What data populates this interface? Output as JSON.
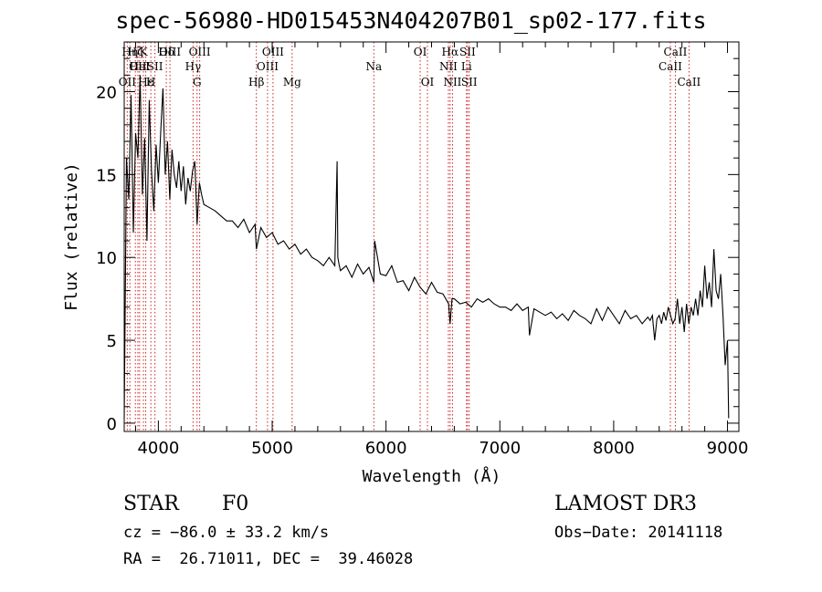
{
  "chart_data": {
    "type": "line",
    "title": "spec-56980-HD015453N404207B01_sp02-177.fits",
    "xlabel": "Wavelength (Å)",
    "ylabel": "Flux (relative)",
    "xlim": [
      3700,
      9100
    ],
    "ylim": [
      -0.5,
      23.0
    ],
    "x_ticks": [
      4000,
      5000,
      6000,
      7000,
      8000,
      9000
    ],
    "y_ticks": [
      0,
      5,
      10,
      15,
      20
    ],
    "series": [
      {
        "name": "spectrum",
        "x": [
          3700,
          3720,
          3740,
          3760,
          3780,
          3800,
          3820,
          3840,
          3860,
          3880,
          3900,
          3920,
          3940,
          3960,
          3980,
          4000,
          4020,
          4040,
          4060,
          4080,
          4100,
          4120,
          4140,
          4160,
          4180,
          4200,
          4220,
          4240,
          4260,
          4280,
          4300,
          4320,
          4340,
          4360,
          4380,
          4400,
          4450,
          4500,
          4550,
          4600,
          4650,
          4700,
          4750,
          4800,
          4850,
          4861,
          4900,
          4950,
          5000,
          5050,
          5100,
          5150,
          5200,
          5250,
          5300,
          5350,
          5400,
          5450,
          5500,
          5550,
          5570,
          5577,
          5590,
          5600,
          5650,
          5700,
          5750,
          5800,
          5850,
          5893,
          5900,
          5950,
          6000,
          6050,
          6100,
          6150,
          6200,
          6250,
          6300,
          6350,
          6400,
          6450,
          6500,
          6550,
          6563,
          6580,
          6600,
          6650,
          6700,
          6750,
          6800,
          6850,
          6900,
          6950,
          7000,
          7050,
          7100,
          7150,
          7200,
          7250,
          7260,
          7300,
          7350,
          7400,
          7450,
          7500,
          7550,
          7600,
          7650,
          7700,
          7750,
          7800,
          7850,
          7900,
          7950,
          8000,
          8050,
          8100,
          8150,
          8200,
          8250,
          8300,
          8320,
          8340,
          8360,
          8380,
          8400,
          8420,
          8440,
          8460,
          8480,
          8500,
          8520,
          8540,
          8560,
          8580,
          8600,
          8620,
          8640,
          8660,
          8680,
          8700,
          8720,
          8740,
          8760,
          8780,
          8800,
          8820,
          8840,
          8860,
          8880,
          8900,
          8920,
          8940,
          8960,
          8980,
          9000,
          9010
        ],
        "y": [
          0.3,
          16.0,
          13.5,
          19.8,
          11.5,
          17.5,
          16.0,
          21.0,
          13.8,
          17.2,
          11.0,
          19.5,
          15.2,
          12.8,
          16.8,
          14.5,
          17.5,
          20.2,
          15.0,
          17.0,
          13.5,
          16.5,
          15.0,
          14.2,
          15.8,
          14.0,
          15.5,
          13.2,
          14.8,
          14.0,
          15.2,
          15.8,
          12.0,
          14.5,
          13.8,
          13.2,
          13.0,
          12.8,
          12.5,
          12.2,
          12.2,
          11.8,
          12.3,
          11.5,
          12.0,
          10.5,
          11.8,
          11.2,
          11.5,
          10.8,
          11.0,
          10.5,
          10.8,
          10.2,
          10.5,
          10.0,
          9.8,
          9.5,
          10.0,
          9.5,
          15.8,
          10.0,
          9.5,
          9.2,
          9.5,
          8.8,
          9.6,
          9.0,
          9.4,
          8.5,
          11.0,
          9.0,
          8.9,
          9.5,
          8.5,
          8.6,
          8.0,
          8.8,
          8.2,
          7.8,
          8.5,
          7.9,
          7.8,
          7.2,
          6.0,
          7.5,
          7.5,
          7.2,
          7.3,
          7.0,
          7.5,
          7.3,
          7.5,
          7.2,
          7.0,
          7.0,
          6.8,
          7.2,
          6.8,
          7.0,
          5.3,
          6.9,
          6.7,
          6.5,
          6.7,
          6.3,
          6.6,
          6.2,
          6.8,
          6.5,
          6.3,
          6.0,
          6.9,
          6.2,
          7.0,
          6.5,
          6.0,
          6.8,
          6.3,
          6.5,
          6.0,
          6.4,
          6.2,
          6.5,
          5.0,
          6.3,
          6.5,
          6.0,
          6.7,
          6.2,
          7.0,
          6.5,
          6.0,
          6.3,
          7.5,
          6.0,
          7.0,
          5.5,
          7.2,
          6.0,
          7.0,
          6.5,
          7.5,
          6.5,
          8.0,
          7.0,
          9.5,
          7.5,
          8.5,
          7.0,
          10.5,
          8.0,
          7.5,
          9.0,
          6.5,
          3.5,
          5.0,
          0.3
        ]
      }
    ],
    "line_markers": [
      {
        "wave": 3727,
        "label": "OII",
        "row": 3
      },
      {
        "wave": 3750,
        "label": "Hη",
        "row": 1
      },
      {
        "wave": 3798,
        "label": "Hζ",
        "row": 1
      },
      {
        "wave": 3820,
        "label": "OII",
        "row": 2
      },
      {
        "wave": 3835,
        "label": "HeI",
        "row": 2
      },
      {
        "wave": 3869,
        "label": "K",
        "row": 1
      },
      {
        "wave": 3889,
        "label": "Hε",
        "row": 3
      },
      {
        "wave": 3934,
        "label": "H",
        "row": 3
      },
      {
        "wave": 3970,
        "label": "SII",
        "row": 2
      },
      {
        "wave": 4070,
        "label": "Hδ",
        "row": 1
      },
      {
        "wave": 4102,
        "label": "OIII",
        "row": 1
      },
      {
        "wave": 4305,
        "label": "Hγ",
        "row": 2
      },
      {
        "wave": 4340,
        "label": "G",
        "row": 3
      },
      {
        "wave": 4363,
        "label": "OIII",
        "row": 1
      },
      {
        "wave": 4861,
        "label": "Hβ",
        "row": 3
      },
      {
        "wave": 4959,
        "label": "OIII",
        "row": 2
      },
      {
        "wave": 5007,
        "label": "OIII",
        "row": 1
      },
      {
        "wave": 5175,
        "label": "Mg",
        "row": 3
      },
      {
        "wave": 5893,
        "label": "Na",
        "row": 2
      },
      {
        "wave": 6300,
        "label": "OI",
        "row": 1
      },
      {
        "wave": 6364,
        "label": "OI",
        "row": 3
      },
      {
        "wave": 6548,
        "label": "NII",
        "row": 2
      },
      {
        "wave": 6563,
        "label": "Hα",
        "row": 1
      },
      {
        "wave": 6584,
        "label": "NII",
        "row": 3
      },
      {
        "wave": 6707,
        "label": "Li",
        "row": 2
      },
      {
        "wave": 6716,
        "label": "SII",
        "row": 1
      },
      {
        "wave": 6731,
        "label": "SII",
        "row": 3
      },
      {
        "wave": 8498,
        "label": "CaII",
        "row": 2
      },
      {
        "wave": 8542,
        "label": "CaII",
        "row": 1
      },
      {
        "wave": 8662,
        "label": "CaII",
        "row": 3
      }
    ],
    "line_marker_color": "#cc2222"
  },
  "info": {
    "class": "STAR",
    "subclass": "F0",
    "survey": "LAMOST DR3",
    "cz": "cz = −86.0 ± 33.2 km/s",
    "obs_date": "Obs−Date: 20141118",
    "coords": "RA =  26.71011, DEC =  39.46028"
  }
}
